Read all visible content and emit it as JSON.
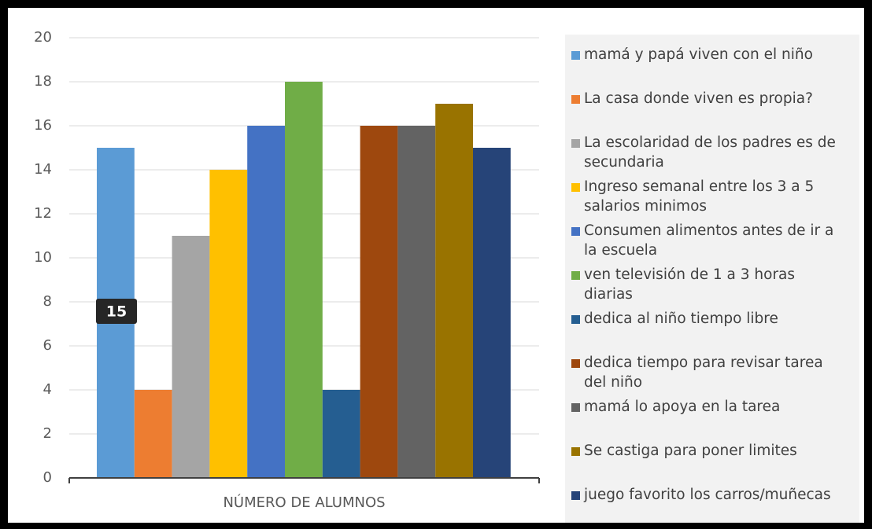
{
  "chart_data": {
    "type": "bar",
    "categories": [
      "NÚMERO DE ALUMNOS"
    ],
    "ylim": [
      0,
      20
    ],
    "yticks": [
      0,
      2,
      4,
      6,
      8,
      10,
      12,
      14,
      16,
      18,
      20
    ],
    "grid": true,
    "legend": "right",
    "series": [
      {
        "name": "mamá y papá viven con el niño",
        "color": "#5b9bd5",
        "values": [
          15
        ]
      },
      {
        "name": "La casa donde viven es propia?",
        "color": "#ed7d31",
        "values": [
          4
        ]
      },
      {
        "name": "La escolaridad de los padres es de secundaria",
        "color": "#a5a5a5",
        "values": [
          11
        ]
      },
      {
        "name": "Ingreso semanal entre los 3 a 5 salarios minimos",
        "color": "#ffc000",
        "values": [
          14
        ]
      },
      {
        "name": "Consumen alimentos antes de ir a la escuela",
        "color": "#4472c4",
        "values": [
          16
        ]
      },
      {
        "name": "ven televisión de 1 a 3 horas diarias",
        "color": "#70ad47",
        "values": [
          18
        ]
      },
      {
        "name": "dedica al niño tiempo libre",
        "color": "#255e91",
        "values": [
          4
        ]
      },
      {
        "name": "dedica tiempo para revisar tarea del niño",
        "color": "#9e480e",
        "values": [
          16
        ]
      },
      {
        "name": "mamá lo apoya en la tarea",
        "color": "#636363",
        "values": [
          16
        ]
      },
      {
        "name": "Se castiga para poner limites",
        "color": "#997300",
        "values": [
          17
        ]
      },
      {
        "name": "juego favorito los carros/muñecas",
        "color": "#264478",
        "values": [
          15
        ]
      }
    ]
  }
}
